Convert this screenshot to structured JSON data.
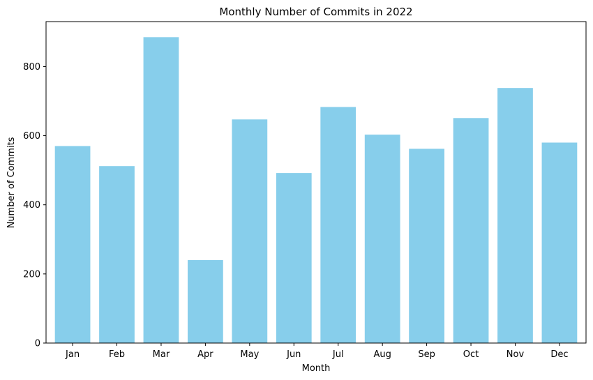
{
  "chart_data": {
    "type": "bar",
    "title": "Monthly Number of Commits in 2022",
    "xlabel": "Month",
    "ylabel": "Number of Commits",
    "categories": [
      "Jan",
      "Feb",
      "Mar",
      "Apr",
      "May",
      "Jun",
      "Jul",
      "Aug",
      "Sep",
      "Oct",
      "Nov",
      "Dec"
    ],
    "values": [
      570,
      512,
      885,
      240,
      647,
      492,
      683,
      603,
      562,
      651,
      738,
      580
    ],
    "ylim": [
      0,
      930
    ],
    "yticks": [
      0,
      200,
      400,
      600,
      800
    ],
    "grid": false,
    "legend": "none",
    "bar_color": "#87CEEB"
  }
}
